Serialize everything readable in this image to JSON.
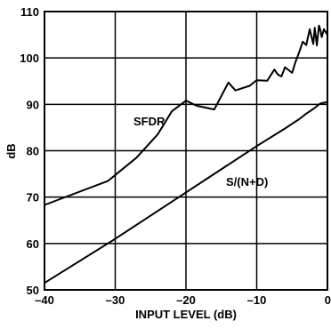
{
  "chart_data": {
    "type": "line",
    "xlabel": "INPUT LEVEL (dB)",
    "ylabel": "dB",
    "xlim": [
      -40,
      0
    ],
    "ylim": [
      50,
      110
    ],
    "grid": true,
    "x_ticks": [
      "–40",
      "–30",
      "–20",
      "–10",
      "0"
    ],
    "y_ticks": [
      "50",
      "60",
      "70",
      "80",
      "90",
      "100",
      "110"
    ],
    "annotations": [
      "SFDR",
      "S/(N+D)"
    ],
    "series": [
      {
        "name": "SFDR",
        "x": [
          -40,
          -31,
          -27,
          -24,
          -22,
          -20,
          -18.5,
          -16,
          -14,
          -13,
          -11,
          -10,
          -8.5,
          -7.5,
          -7,
          -6.5,
          -6,
          -5,
          -4.5,
          -4,
          -3.5,
          -3,
          -2.5,
          -2,
          -1.8,
          -1.5,
          -1.2,
          -1,
          -0.8,
          -0.5,
          0
        ],
        "y": [
          68.3,
          73.5,
          78.5,
          83.5,
          88.5,
          90.8,
          89.7,
          88.9,
          94.7,
          93,
          94,
          95.2,
          95.1,
          97.5,
          96.4,
          96,
          98,
          96.8,
          99.2,
          101.2,
          103.5,
          102.8,
          106.2,
          103,
          106.5,
          102.7,
          107,
          106,
          104.5,
          106.2,
          105
        ]
      },
      {
        "name": "S/(N+D)",
        "x": [
          -40,
          -30,
          -20,
          -10,
          -6,
          -5,
          -4,
          -3,
          -2,
          -1,
          0
        ],
        "y": [
          51.5,
          61,
          71,
          81,
          84.8,
          85.8,
          86.8,
          88,
          89,
          90.2,
          90.5
        ]
      }
    ]
  }
}
